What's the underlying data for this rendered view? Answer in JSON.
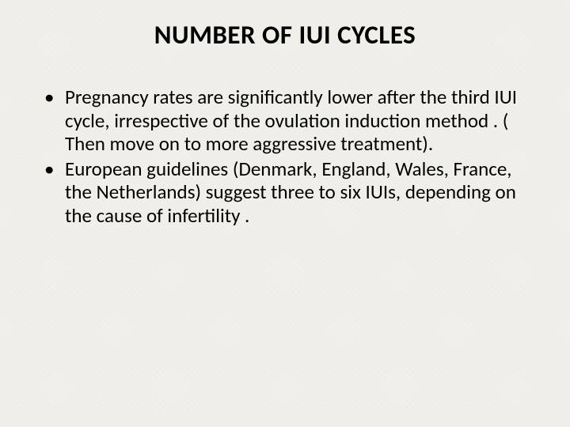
{
  "slide": {
    "title": "NUMBER OF IUI CYCLES",
    "title_fontsize": 33,
    "title_weight": 700,
    "title_color": "#000000",
    "body_fontsize": 25,
    "body_color": "#000000",
    "background_color": "#f2f1ec",
    "bullets": [
      " Pregnancy rates are significantly lower after the third IUI cycle, irrespective of the ovulation induction method . ( Then move on to more aggressive treatment).",
      "European guidelines (Denmark, England, Wales, France, the Netherlands) suggest three to six IUIs, depending on the cause of infertility ."
    ]
  }
}
